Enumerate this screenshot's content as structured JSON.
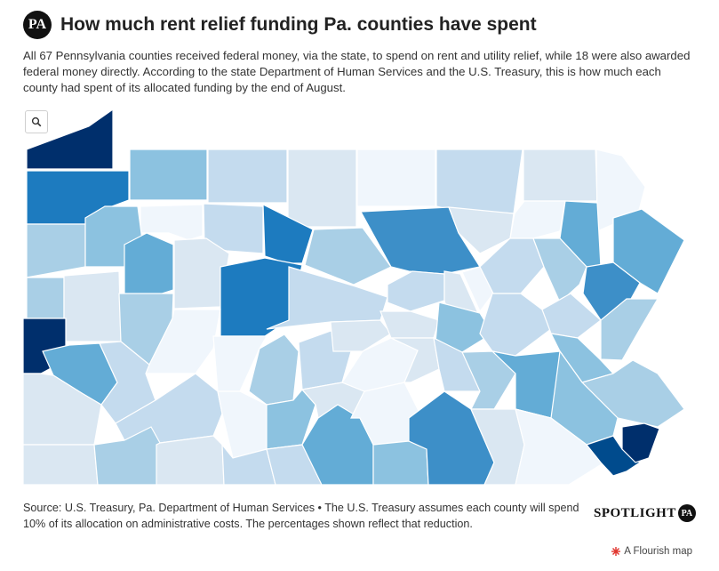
{
  "header": {
    "logo_text": "PA",
    "title": "How much rent relief funding Pa. counties have spent"
  },
  "subtitle": "All 67 Pennsylvania counties received federal money, via the state, to spend on rent and utility relief, while 18 were also awarded federal money directly. According to the state Department of Human Services and the U.S. Treasury, this is how much each county had spent of its allocated funding by the end of August.",
  "map_controls": {
    "search_icon": "magnifier-icon"
  },
  "map": {
    "palette": {
      "c1": "#f0f6fc",
      "c2": "#dae7f2",
      "c3": "#c4dbee",
      "c4": "#a9cfe6",
      "c5": "#8cc2e0",
      "c6": "#63acd6",
      "c7": "#3d8fc8",
      "c8": "#1d7bbf",
      "c9": "#004b8d",
      "c10": "#002f6c",
      "border": "#ffffff"
    }
  },
  "footer": {
    "source": "Source: U.S. Treasury, Pa. Department of Human Services • The U.S. Treasury assumes each county will spend 10% of its allocation on administrative costs. The percentages shown reflect that reduction.",
    "brand_word": "SPOTLIGHT",
    "brand_badge": "PA",
    "flourish_label": "A Flourish map",
    "flourish_icon": "flourish-burst-icon"
  }
}
